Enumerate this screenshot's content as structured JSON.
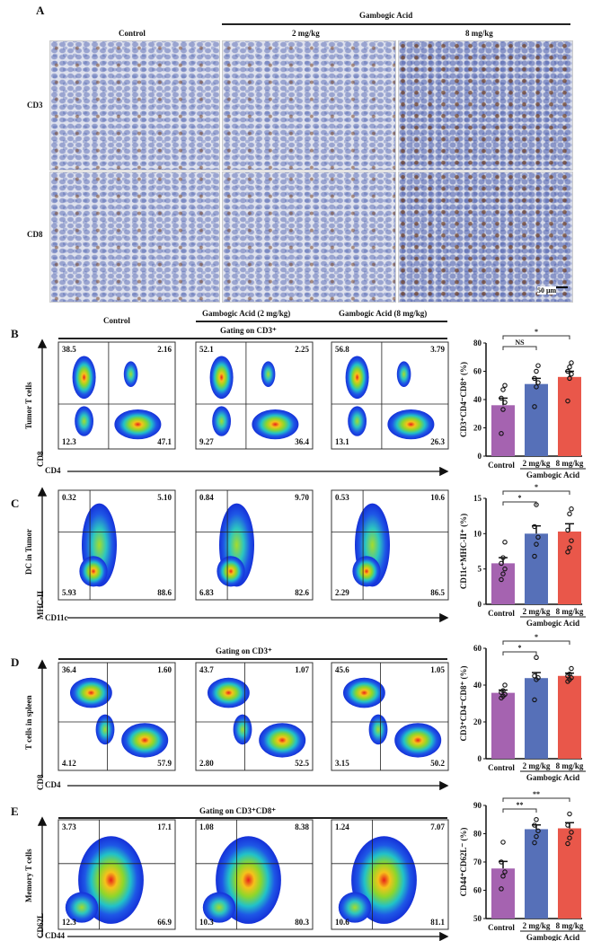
{
  "panel_a": {
    "label": "A",
    "group_header": "Gambogic Acid",
    "columns": [
      "Control",
      "2 mg/kg",
      "8 mg/kg"
    ],
    "rows": [
      "CD3",
      "CD8"
    ],
    "scale_bar": "50 μm"
  },
  "panel_b": {
    "label": "B",
    "columns": [
      "Control",
      "Gambogic Acid (2 mg/kg)",
      "Gambogic Acid (8 mg/kg)"
    ],
    "gating": "Gating on CD3⁺",
    "row_title": "Tumor T cells",
    "y_marker": "CD8",
    "x_marker": "CD4",
    "quadrants": [
      [
        "38.5",
        "2.16",
        "12.3",
        "47.1"
      ],
      [
        "52.1",
        "2.25",
        "9.27",
        "36.4"
      ],
      [
        "56.8",
        "3.79",
        "13.1",
        "26.3"
      ]
    ]
  },
  "panel_c": {
    "label": "C",
    "row_title": "DC in Tumor",
    "y_marker": "MHC-II",
    "x_marker": "CD11c",
    "quadrants": [
      [
        "0.32",
        "5.10",
        "5.93",
        "88.6"
      ],
      [
        "0.84",
        "9.70",
        "6.83",
        "82.6"
      ],
      [
        "0.53",
        "10.6",
        "2.29",
        "86.5"
      ]
    ]
  },
  "panel_d": {
    "label": "D",
    "gating": "Gating on CD3⁺",
    "row_title": "T cells in spleen",
    "y_marker": "CD8",
    "x_marker": "CD4",
    "quadrants": [
      [
        "36.4",
        "1.60",
        "4.12",
        "57.9"
      ],
      [
        "43.7",
        "1.07",
        "2.80",
        "52.5"
      ],
      [
        "45.6",
        "1.05",
        "3.15",
        "50.2"
      ]
    ]
  },
  "panel_e": {
    "label": "E",
    "gating": "Gating on CD3⁺CD8⁺",
    "row_title": "Memory T cells",
    "y_marker": "CD62L",
    "x_marker": "CD44",
    "quadrants": [
      [
        "3.73",
        "17.1",
        "12.3",
        "66.9"
      ],
      [
        "1.08",
        "8.38",
        "10.3",
        "80.3"
      ],
      [
        "1.24",
        "7.07",
        "10.6",
        "81.1"
      ]
    ]
  },
  "chart_data": [
    {
      "type": "bar",
      "ylabel": "CD3⁺CD4⁻CD8⁺ (%)",
      "categories": [
        "Control",
        "2 mg/kg",
        "8 mg/kg"
      ],
      "group_label": "Gambogic Acid",
      "ylim": [
        0,
        80
      ],
      "yticks": [
        "0",
        "20",
        "40",
        "60",
        "80"
      ],
      "values": [
        36,
        51,
        56
      ],
      "errors": [
        5,
        4,
        4
      ],
      "points": [
        [
          16,
          33,
          38,
          41,
          47,
          50
        ],
        [
          35,
          49,
          52,
          55,
          60,
          64
        ],
        [
          39,
          55,
          58,
          60,
          63,
          66
        ]
      ],
      "significance": [
        {
          "pair": [
            0,
            1
          ],
          "label": "NS"
        },
        {
          "pair": [
            0,
            2
          ],
          "label": "*"
        }
      ],
      "colors": [
        "#a563b0",
        "#5670b8",
        "#e9574a"
      ]
    },
    {
      "type": "bar",
      "ylabel": "CD11c⁺MHC-II⁺ (%)",
      "categories": [
        "Control",
        "2 mg/kg",
        "8 mg/kg"
      ],
      "group_label": "Gambogic Acid",
      "ylim": [
        0,
        15
      ],
      "yticks": [
        "0",
        "5",
        "10",
        "15"
      ],
      "values": [
        5.8,
        10.0,
        10.3
      ],
      "errors": [
        0.8,
        1.1,
        1.1
      ],
      "points": [
        [
          3.5,
          4.3,
          5.0,
          5.8,
          6.6,
          8.8
        ],
        [
          6.8,
          8.5,
          9.5,
          11.0,
          14.1
        ],
        [
          7.4,
          8.0,
          9.0,
          10.5,
          12.8,
          13.5
        ]
      ],
      "significance": [
        {
          "pair": [
            0,
            1
          ],
          "label": "*"
        },
        {
          "pair": [
            0,
            2
          ],
          "label": "*"
        }
      ],
      "colors": [
        "#a563b0",
        "#5670b8",
        "#e9574a"
      ]
    },
    {
      "type": "bar",
      "ylabel": "CD3⁺CD4⁻CD8⁺ (%)",
      "categories": [
        "Control",
        "2 mg/kg",
        "8 mg/kg"
      ],
      "group_label": "Gambogic Acid",
      "ylim": [
        0,
        60
      ],
      "yticks": [
        "0",
        "20",
        "40",
        "60"
      ],
      "values": [
        35.8,
        43.8,
        45.0
      ],
      "errors": [
        1.5,
        3,
        1.5
      ],
      "points": [
        [
          33,
          34,
          35,
          36,
          37,
          40
        ],
        [
          32,
          43,
          44,
          45,
          55
        ],
        [
          42,
          43,
          44,
          45,
          46,
          49
        ]
      ],
      "significance": [
        {
          "pair": [
            0,
            1
          ],
          "label": "*"
        },
        {
          "pair": [
            0,
            2
          ],
          "label": "*"
        }
      ],
      "colors": [
        "#a563b0",
        "#5670b8",
        "#e9574a"
      ]
    },
    {
      "type": "bar",
      "ylabel": "CD44⁺CD62L⁻ (%)",
      "categories": [
        "Control",
        "2 mg/kg",
        "8 mg/kg"
      ],
      "group_label": "Gambogic Acid",
      "ylim": [
        50,
        90
      ],
      "yticks": [
        "50",
        "60",
        "70",
        "80",
        "90"
      ],
      "values": [
        67.7,
        81.6,
        81.9
      ],
      "errors": [
        2.5,
        1.5,
        2
      ],
      "points": [
        [
          60.5,
          65,
          66.5,
          70,
          77
        ],
        [
          76.8,
          79,
          81,
          83,
          85
        ],
        [
          76.5,
          78.5,
          80.5,
          83,
          87
        ]
      ],
      "significance": [
        {
          "pair": [
            0,
            1
          ],
          "label": "**"
        },
        {
          "pair": [
            0,
            2
          ],
          "label": "**"
        }
      ],
      "colors": [
        "#a563b0",
        "#5670b8",
        "#e9574a"
      ]
    }
  ]
}
